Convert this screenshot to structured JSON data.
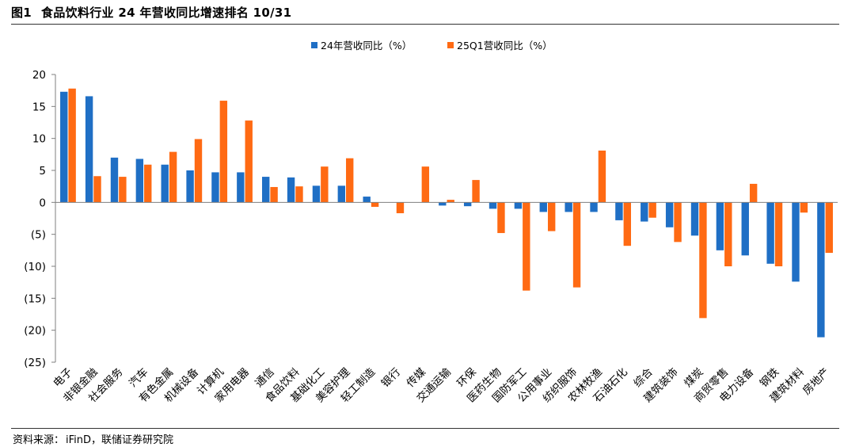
{
  "header": {
    "figure_label": "图1",
    "title": "食品饮料行业 24 年营收同比增速排名 10/31"
  },
  "footer": {
    "source_label": "资料来源：",
    "source_value": "iFinD，联储证券研究院"
  },
  "colors": {
    "series_2024": "#1F6FC5",
    "series_25q1": "#FF6A13",
    "axis": "#7F7F7F",
    "text": "#000000"
  },
  "chart_data": {
    "type": "bar",
    "title": "食品饮料行业 24 年营收同比增速排名 10/31",
    "xlabel": "",
    "ylabel": "",
    "ylim": [
      -25,
      20
    ],
    "yticks": [
      20,
      15,
      10,
      5,
      0,
      -5,
      -10,
      -15,
      -20,
      -25
    ],
    "ytick_labels": [
      "20",
      "15",
      "10",
      "5",
      "0",
      "(5)",
      "(10)",
      "(15)",
      "(20)",
      "(25)"
    ],
    "grid": false,
    "legend_position": "top-center",
    "categories": [
      "电子",
      "非银金融",
      "社会服务",
      "汽车",
      "有色金属",
      "机械设备",
      "计算机",
      "家用电器",
      "通信",
      "食品饮料",
      "基础化工",
      "美容护理",
      "轻工制造",
      "银行",
      "传媒",
      "交通运输",
      "环保",
      "医药生物",
      "国防军工",
      "公用事业",
      "纺织服饰",
      "农林牧渔",
      "石油石化",
      "综合",
      "建筑装饰",
      "煤炭",
      "商贸零售",
      "电力设备",
      "钢铁",
      "建筑材料",
      "房地产"
    ],
    "series": [
      {
        "name": "24年营收同比（%）",
        "values": [
          17.3,
          16.6,
          7.0,
          6.8,
          5.9,
          5.0,
          4.7,
          4.7,
          4.0,
          3.9,
          2.6,
          2.6,
          0.9,
          0.0,
          0.0,
          -0.5,
          -0.6,
          -1.0,
          -1.0,
          -1.5,
          -1.5,
          -1.5,
          -2.8,
          -3.0,
          -3.9,
          -5.2,
          -7.5,
          -8.3,
          -9.6,
          -12.4,
          -21.1
        ]
      },
      {
        "name": "25Q1营收同比（%）",
        "values": [
          17.8,
          4.1,
          4.0,
          5.9,
          7.9,
          9.9,
          15.9,
          12.8,
          2.4,
          2.5,
          5.6,
          6.9,
          -0.7,
          -1.7,
          5.6,
          0.4,
          3.5,
          -4.8,
          -13.8,
          -4.5,
          -13.3,
          8.1,
          -6.8,
          -2.4,
          -6.2,
          -18.1,
          -10.0,
          2.9,
          -10.0,
          -1.6,
          -7.9
        ]
      }
    ]
  }
}
